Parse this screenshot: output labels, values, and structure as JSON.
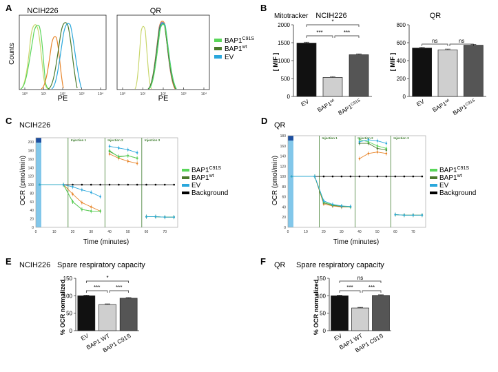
{
  "colors": {
    "c91s": "#5ad65a",
    "wt": "#4a7a2c",
    "ev": "#2aa7dc",
    "bg": "#000000",
    "orange": "#e8852a",
    "yellow": "#c8d66a",
    "purple": "#8a78c8",
    "injection": "#3a7a2a",
    "baseline": "#6cbde6"
  },
  "panel_letters": {
    "a": "A",
    "b": "B",
    "c": "C",
    "d": "D",
    "e": "E",
    "f": "F"
  },
  "legend_labels": {
    "c91s_base": "BAP1",
    "c91s_sup": "C91S",
    "wt_base": "BAP1",
    "wt_sup": "wt",
    "ev": "EV",
    "background": "Background"
  },
  "flow": {
    "ncih226": {
      "title": "NCIH226",
      "ylabel": "Counts",
      "xlabel": "PE",
      "ticks": [
        "10⁰",
        "10¹",
        "10²",
        "10³",
        "10⁴"
      ]
    },
    "qr": {
      "title": "QR",
      "xlabel": "PE",
      "ticks": [
        "10⁰",
        "10¹",
        "10²",
        "10³",
        "10⁴"
      ]
    }
  },
  "mito": {
    "label": "Mitotracker",
    "ncih226": {
      "title": "NCIH226",
      "ylabel": "[ MIF ]",
      "yticks": [
        "0",
        "500",
        "1000",
        "1500",
        "2000"
      ],
      "categories": [
        {
          "base": "EV",
          "sup": ""
        },
        {
          "base": "BAP1",
          "sup": "wt"
        },
        {
          "base": "BAP1",
          "sup": "C91S"
        }
      ],
      "values": [
        1490,
        530,
        1165
      ],
      "ymax": 2000,
      "sig": [
        "***",
        "***",
        "*"
      ]
    },
    "qr": {
      "title": "QR",
      "ylabel": "[ MIF ]",
      "yticks": [
        "0",
        "200",
        "400",
        "600",
        "800"
      ],
      "categories": [
        {
          "base": "EV",
          "sup": ""
        },
        {
          "base": "BAP1",
          "sup": "wt"
        },
        {
          "base": "BAP1",
          "sup": "C91S"
        }
      ],
      "values": [
        540,
        520,
        572
      ],
      "ymax": 800,
      "sig": [
        "ns",
        "ns"
      ]
    }
  },
  "seahorse": {
    "ncih226": {
      "title": "NCIH226",
      "ylabel": "OCR (pmol/min)",
      "xlabel": "Time (minutes)",
      "injections": [
        "Injection 1",
        "Injection 2",
        "Injection 3"
      ],
      "x": [
        2,
        15,
        20,
        25,
        30,
        35,
        40,
        45,
        50,
        55,
        60,
        65,
        70,
        75
      ],
      "xticks": [
        "0",
        "10",
        "20",
        "30",
        "40",
        "50",
        "60",
        "70"
      ],
      "yticks": [
        "0",
        "20",
        "40",
        "60",
        "80",
        "100",
        "120",
        "140",
        "160",
        "180",
        "200"
      ],
      "series": {
        "c91s": [
          100,
          100,
          60,
          42,
          38,
          38,
          180,
          165,
          168,
          162,
          25,
          25,
          24,
          24
        ],
        "wt": [
          100,
          100,
          60,
          42,
          38,
          38,
          178,
          166,
          168,
          162,
          25,
          25,
          24,
          24
        ],
        "ev": [
          100,
          100,
          95,
          88,
          82,
          72,
          190,
          186,
          182,
          175,
          25,
          25,
          24,
          24
        ],
        "orange": [
          100,
          100,
          78,
          58,
          48,
          38,
          172,
          162,
          155,
          150,
          25,
          25,
          24,
          24
        ],
        "bg": [
          100,
          100,
          100,
          100,
          100,
          100,
          100,
          100,
          100,
          100,
          100,
          100,
          100,
          100
        ]
      },
      "ymax": 210
    },
    "qr": {
      "title": "QR",
      "ylabel": "OCR (pmol/min)",
      "xlabel": "Time (minutes)",
      "injections": [
        "Injection 1",
        "Injection 2",
        "Injection 3"
      ],
      "x": [
        2,
        15,
        20,
        25,
        30,
        35,
        40,
        45,
        50,
        55,
        60,
        65,
        70,
        75
      ],
      "xticks": [
        "0",
        "10",
        "20",
        "30",
        "40",
        "50",
        "60",
        "70"
      ],
      "yticks": [
        "0",
        "20",
        "40",
        "60",
        "80",
        "100",
        "120",
        "140",
        "160",
        "180"
      ],
      "series": {
        "c91s": [
          100,
          100,
          50,
          44,
          42,
          40,
          172,
          168,
          160,
          155,
          25,
          24,
          24,
          24
        ],
        "wt": [
          100,
          100,
          48,
          43,
          41,
          40,
          165,
          165,
          155,
          152,
          25,
          24,
          24,
          24
        ],
        "ev": [
          100,
          100,
          52,
          45,
          42,
          41,
          168,
          172,
          170,
          165,
          25,
          24,
          24,
          24
        ],
        "orange": [
          100,
          100,
          46,
          42,
          40,
          40,
          135,
          145,
          148,
          145,
          25,
          24,
          24,
          24
        ],
        "bg": [
          100,
          100,
          100,
          100,
          100,
          100,
          100,
          100,
          100,
          100,
          100,
          100,
          100,
          100
        ]
      },
      "ymax": 180
    }
  },
  "chart_data": [
    {
      "type": "bar",
      "panel": "B",
      "title": "NCIH226",
      "ylabel": "[ MIF ]",
      "categories": [
        "EV",
        "BAP1wt",
        "BAP1C91S"
      ],
      "values": [
        1490,
        530,
        1165
      ],
      "ylim": [
        0,
        2000
      ]
    },
    {
      "type": "bar",
      "panel": "B",
      "title": "QR",
      "ylabel": "[ MIF ]",
      "categories": [
        "EV",
        "BAP1wt",
        "BAP1C91S"
      ],
      "values": [
        540,
        520,
        572
      ],
      "ylim": [
        0,
        800
      ]
    },
    {
      "type": "bar",
      "panel": "E",
      "title": "Spare respiratory capacity",
      "ylabel": "% OCR normalized",
      "categories": [
        "EV",
        "BAP1 WT",
        "BAP1 C91S"
      ],
      "values": [
        100,
        75,
        93
      ],
      "ylim": [
        0,
        150
      ]
    },
    {
      "type": "bar",
      "panel": "F",
      "title": "Spare respiratory capacity",
      "ylabel": "% OCR normalized",
      "categories": [
        "EV",
        "BAP1 WT",
        "BAP1 C91S"
      ],
      "values": [
        100,
        65,
        101
      ],
      "ylim": [
        0,
        150
      ]
    }
  ],
  "spare": {
    "ncih226": {
      "cell": "NCIH226",
      "title": "Spare respiratory capacity",
      "ylabel": "% OCR normalized",
      "yticks": [
        "0",
        "50",
        "100",
        "150"
      ],
      "categories": [
        "EV",
        "BAP1 WT",
        "BAP1 C91S"
      ],
      "values": [
        100,
        75,
        93
      ],
      "ymax": 150,
      "sig": [
        "***",
        "***",
        "*"
      ]
    },
    "qr": {
      "cell": "QR",
      "title": "Spare respiratory capacity",
      "ylabel": "% OCR normalized",
      "yticks": [
        "0",
        "50",
        "100",
        "150"
      ],
      "categories": [
        "EV",
        "BAP1 WT",
        "BAP1 C91S"
      ],
      "values": [
        100,
        65,
        101
      ],
      "ymax": 150,
      "sig": [
        "***",
        "***",
        "ns"
      ]
    }
  }
}
